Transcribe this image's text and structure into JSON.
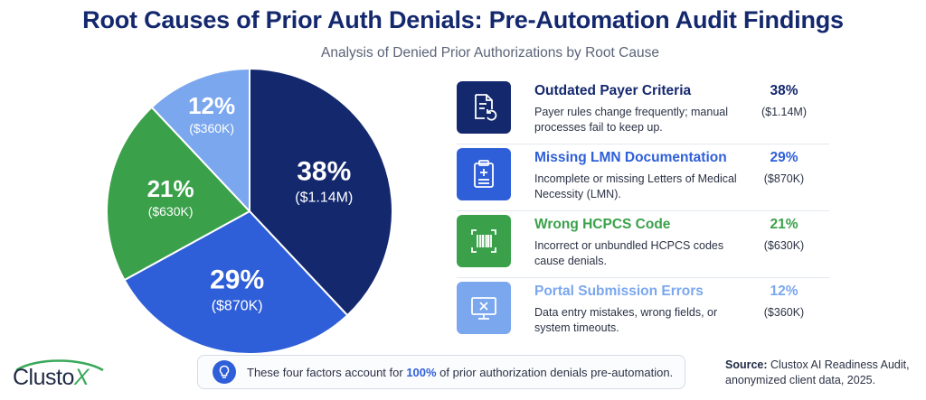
{
  "title": "Root Causes of Prior Auth Denials: Pre-Automation Audit Findings",
  "subtitle": "Analysis of Denied Prior Authorizations by Root Cause",
  "chart_data": {
    "type": "pie",
    "start_angle_deg": 0,
    "direction": "clockwise",
    "slices": [
      {
        "label": "Outdated Payer Criteria",
        "value": 38,
        "pct_label": "38%",
        "amount_label": "($1.14M)",
        "color": "#14286e"
      },
      {
        "label": "Missing LMN Documentation",
        "value": 29,
        "pct_label": "29%",
        "amount_label": "($870K)",
        "color": "#2f5fd8"
      },
      {
        "label": "Wrong HCPCS Code",
        "value": 21,
        "pct_label": "21%",
        "amount_label": "($630K)",
        "color": "#3aa14a"
      },
      {
        "label": "Portal Submission Errors",
        "value": 12,
        "pct_label": "12%",
        "amount_label": "($360K)",
        "color": "#7ba7ee"
      }
    ]
  },
  "legend": [
    {
      "title": "Outdated Payer Criteria",
      "desc": "Payer rules change frequently; manual processes fail to keep up.",
      "pct": "38%",
      "amount": "($1.14M)",
      "color": "#14286e",
      "icon": "document-refresh-icon"
    },
    {
      "title": "Missing LMN Documentation",
      "desc": "Incomplete or missing Letters of Medical Necessity (LMN).",
      "pct": "29%",
      "amount": "($870K)",
      "color": "#2f5fd8",
      "icon": "clipboard-medical-icon"
    },
    {
      "title": "Wrong HCPCS Code",
      "desc": "Incorrect or unbundled HCPCS codes cause denials.",
      "pct": "21%",
      "amount": "($630K)",
      "color": "#3aa14a",
      "icon": "barcode-scan-icon"
    },
    {
      "title": "Portal Submission Errors",
      "desc": "Data entry mistakes, wrong fields, or system timeouts.",
      "pct": "12%",
      "amount": "($360K)",
      "color": "#7ba7ee",
      "icon": "monitor-error-icon"
    }
  ],
  "banner": {
    "pre": "These four factors account for ",
    "highlight": "100%",
    "post": " of prior authorization denials pre-automation.",
    "icon": "lightbulb-icon"
  },
  "source": {
    "label": "Source:",
    "text": " Clustox AI Readiness Audit, anonymized client data, 2025."
  },
  "logo": {
    "text_main": "Clusto",
    "text_accent": "X"
  }
}
